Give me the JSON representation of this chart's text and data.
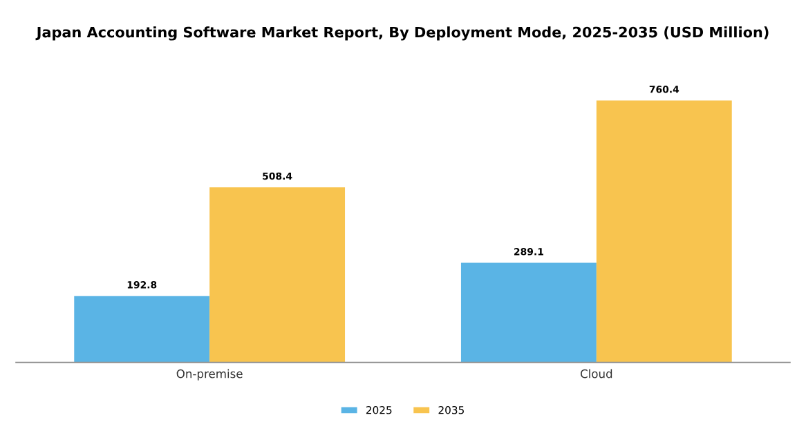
{
  "chart_data": {
    "type": "bar",
    "title": "Japan Accounting Software Market Report, By Deployment Mode, 2025-2035 (USD Million)",
    "categories": [
      "On-premise",
      "Cloud"
    ],
    "series": [
      {
        "name": "2025",
        "color": "#5ab4e5",
        "values": [
          192.8,
          289.1
        ]
      },
      {
        "name": "2035",
        "color": "#f8c44f",
        "values": [
          508.4,
          760.4
        ]
      }
    ],
    "data_labels": true,
    "legend": "bottom",
    "grid": false
  }
}
